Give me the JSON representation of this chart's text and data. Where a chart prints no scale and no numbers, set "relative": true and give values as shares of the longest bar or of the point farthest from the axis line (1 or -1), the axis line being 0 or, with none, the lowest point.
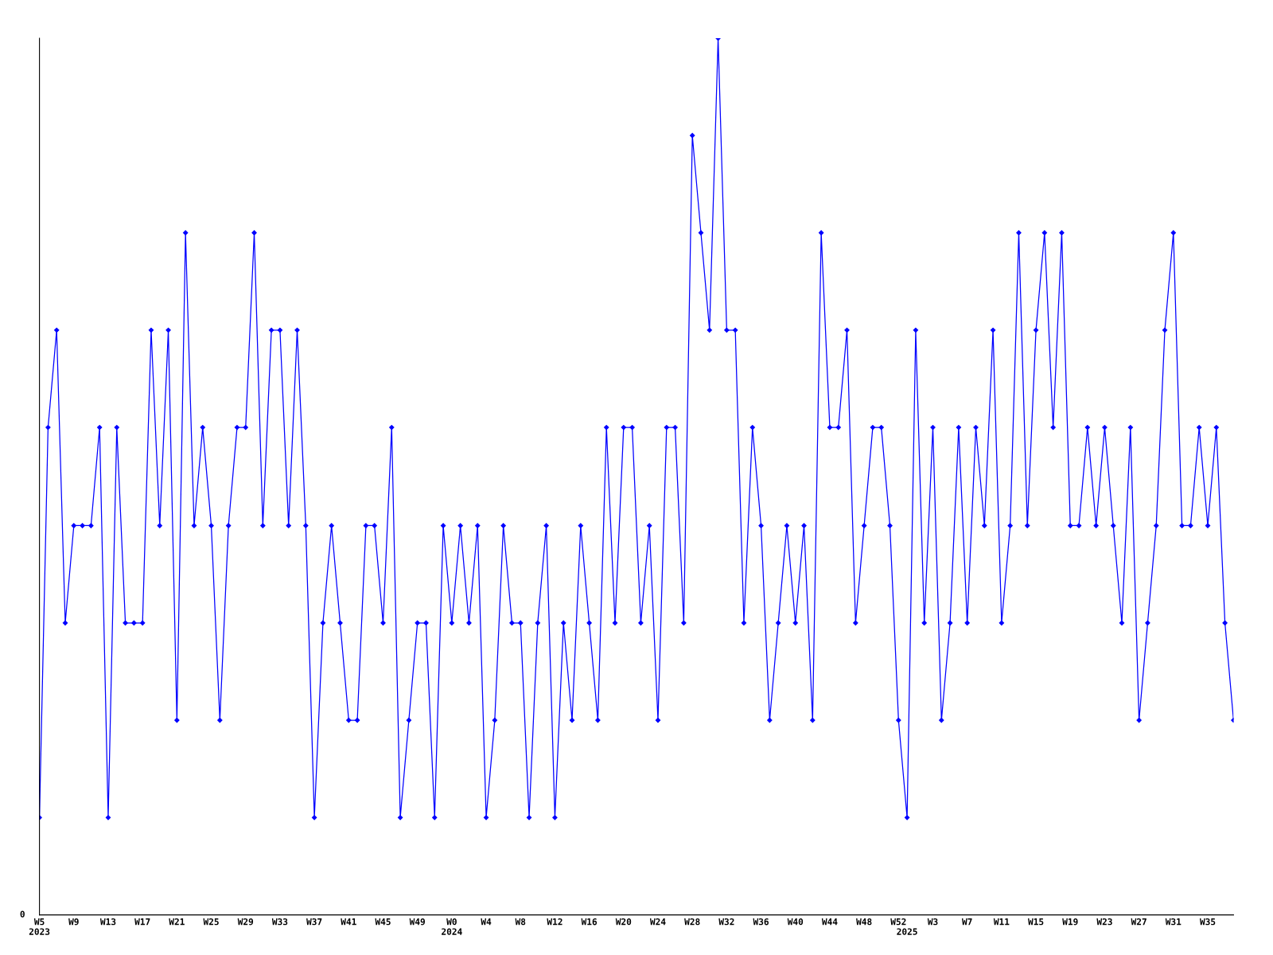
{
  "chart_data": {
    "type": "line",
    "relative": true,
    "color": "#0000ff",
    "marker": "diamond",
    "line_style": "solid",
    "grid": false,
    "legend": false,
    "categories": [
      "W5\n2023",
      null,
      null,
      null,
      "W9",
      null,
      null,
      null,
      "W13",
      null,
      null,
      null,
      "W17",
      null,
      null,
      null,
      "W21",
      null,
      null,
      null,
      "W25",
      null,
      null,
      null,
      "W29",
      null,
      null,
      null,
      "W33",
      null,
      null,
      null,
      "W37",
      null,
      null,
      null,
      "W41",
      null,
      null,
      null,
      "W45",
      null,
      null,
      null,
      "W49",
      null,
      null,
      null,
      "W0\n2024",
      null,
      null,
      null,
      "W4",
      null,
      null,
      null,
      "W8",
      null,
      null,
      null,
      "W12",
      null,
      null,
      null,
      "W16",
      null,
      null,
      null,
      "W20",
      null,
      null,
      null,
      "W24",
      null,
      null,
      null,
      "W28",
      null,
      null,
      null,
      "W32",
      null,
      null,
      null,
      "W36",
      null,
      null,
      null,
      "W40",
      null,
      null,
      null,
      "W44",
      null,
      null,
      null,
      "W48",
      null,
      null,
      null,
      "W52",
      "\n2025",
      null,
      null,
      "W3",
      null,
      null,
      null,
      "W7",
      null,
      null,
      null,
      "W11",
      null,
      null,
      null,
      "W15",
      null,
      null,
      null,
      "W19",
      null,
      null,
      null,
      "W23",
      null,
      null,
      null,
      "W27",
      null,
      null,
      null,
      "W31",
      null,
      null,
      null,
      "W35",
      null,
      null,
      null
    ],
    "values": [
      0.111,
      0.556,
      0.667,
      0.333,
      0.444,
      0.444,
      0.444,
      0.556,
      0.111,
      0.556,
      0.333,
      0.333,
      0.333,
      0.667,
      0.444,
      0.667,
      0.222,
      0.778,
      0.444,
      0.556,
      0.444,
      0.222,
      0.444,
      0.556,
      0.556,
      0.778,
      0.444,
      0.667,
      0.667,
      0.444,
      0.667,
      0.444,
      0.111,
      0.333,
      0.444,
      0.333,
      0.222,
      0.222,
      0.444,
      0.444,
      0.333,
      0.556,
      0.111,
      0.222,
      0.333,
      0.333,
      0.111,
      0.444,
      0.333,
      0.444,
      0.333,
      0.444,
      0.111,
      0.222,
      0.444,
      0.333,
      0.333,
      0.111,
      0.333,
      0.444,
      0.111,
      0.333,
      0.222,
      0.444,
      0.333,
      0.222,
      0.556,
      0.333,
      0.556,
      0.556,
      0.333,
      0.444,
      0.222,
      0.556,
      0.556,
      0.333,
      0.889,
      0.778,
      0.667,
      1,
      0.667,
      0.667,
      0.333,
      0.556,
      0.444,
      0.222,
      0.333,
      0.444,
      0.333,
      0.444,
      0.222,
      0.778,
      0.556,
      0.556,
      0.667,
      0.333,
      0.444,
      0.556,
      0.556,
      0.444,
      0.222,
      0.111,
      0.667,
      0.333,
      0.556,
      0.222,
      0.333,
      0.556,
      0.333,
      0.556,
      0.444,
      0.667,
      0.333,
      0.444,
      0.778,
      0.444,
      0.667,
      0.778,
      0.556,
      0.778,
      0.444,
      0.444,
      0.556,
      0.444,
      0.556,
      0.444,
      0.333,
      0.556,
      0.222,
      0.333,
      0.444,
      0.667,
      0.778,
      0.444,
      0.444,
      0.556,
      0.444,
      0.556,
      0.333,
      0.222
    ],
    "annotations": [
      "0"
    ]
  }
}
